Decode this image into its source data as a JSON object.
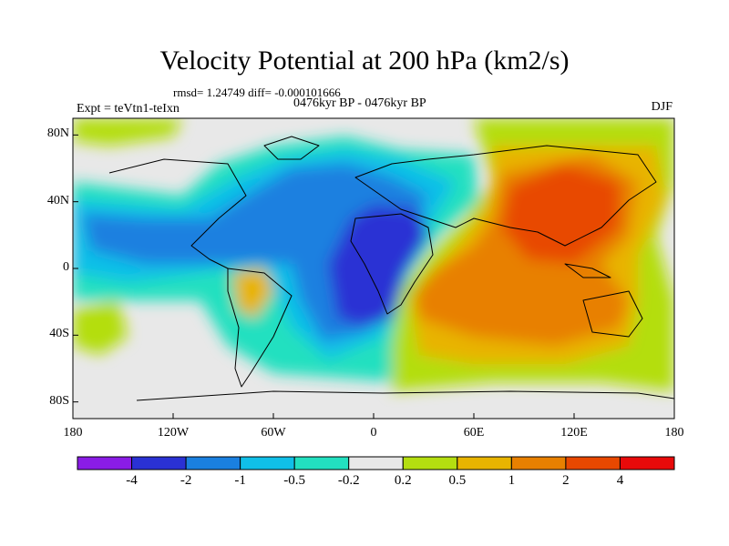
{
  "title": "Velocity Potential at 200 hPa (km2/s)",
  "stats": "rmsd= 1.24749 diff= -0.000101666",
  "experiment": "Expt = teVtn1-teIxn",
  "period": "0476kyr BP - 0476kyr BP",
  "season": "DJF",
  "map": {
    "projection": "cylindrical equidistant",
    "lon_range": [
      -180,
      180
    ],
    "lat_range": [
      -90,
      90
    ],
    "y_ticks": [
      "80N",
      "40N",
      "0",
      "40S",
      "80S"
    ],
    "x_ticks": [
      "180",
      "120W",
      "60W",
      "0",
      "60E",
      "120E",
      "180"
    ],
    "features": [
      "coastlines",
      "filled contours"
    ]
  },
  "colorbar": {
    "labels": [
      "-4",
      "-2",
      "-1",
      "-0.5",
      "-0.2",
      "0.2",
      "0.5",
      "1",
      "2",
      "4"
    ],
    "colors": [
      "#8a1ce6",
      "#2a31d4",
      "#1a80e0",
      "#10bfe8",
      "#22e0c0",
      "#e8e8e8",
      "#b4de10",
      "#e8b400",
      "#e88000",
      "#e84800",
      "#e80a0a"
    ]
  }
}
